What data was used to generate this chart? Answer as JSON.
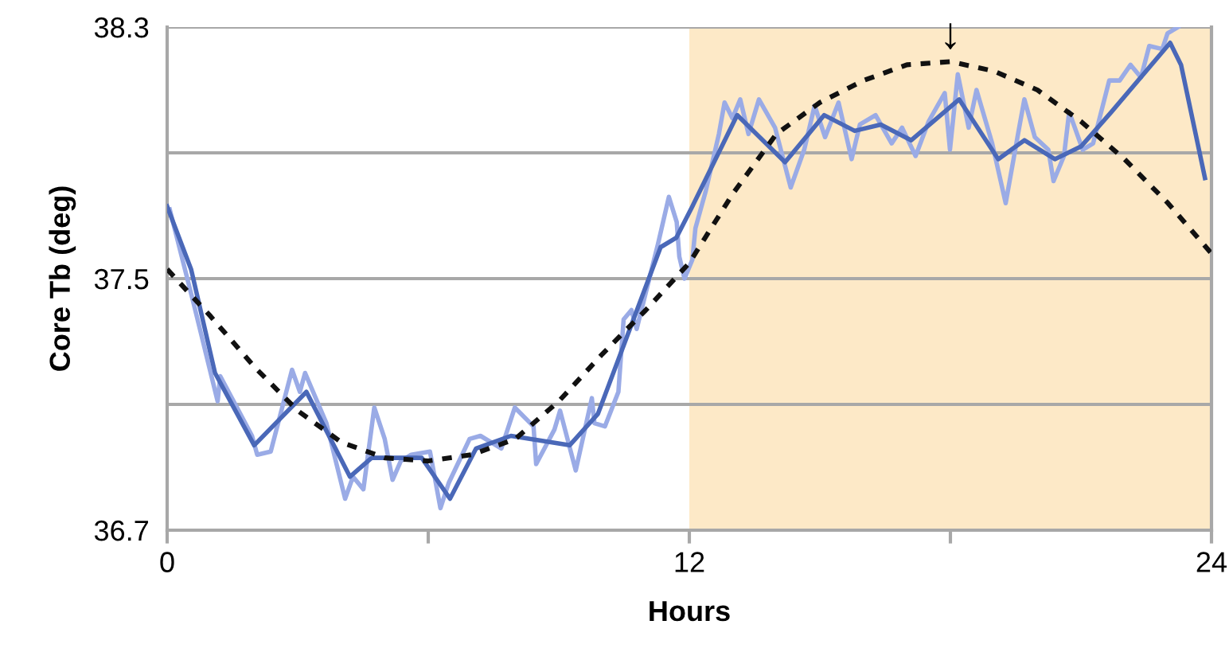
{
  "chart_data": {
    "type": "line",
    "xlabel": "Hours",
    "ylabel": "Core Tb (deg)",
    "xlim": [
      0,
      24
    ],
    "ylim": [
      36.7,
      38.3
    ],
    "xticks": [
      0,
      {
        "value": 6,
        "label": null
      },
      12,
      {
        "value": 18,
        "label": null
      },
      24
    ],
    "yticks": [
      36.7,
      {
        "value": 37.1,
        "label": null
      },
      37.5,
      {
        "value": 37.9,
        "label": null
      },
      38.3
    ],
    "grid": "y",
    "legend": false,
    "bands": [
      {
        "axis": "x",
        "from": 12,
        "to": 24,
        "label": null,
        "color": "#fde9c7"
      }
    ],
    "annotations": [
      {
        "text": "↓",
        "x": 18,
        "y": 38.19
      }
    ],
    "series": [
      {
        "color": "#9aabe6",
        "line_style": "solid",
        "x": [
          0.06,
          0.61,
          1.16,
          1.22,
          1.95,
          2.07,
          2.38,
          2.87,
          3.05,
          3.17,
          3.66,
          4.09,
          4.27,
          4.51,
          4.76,
          5.0,
          5.18,
          5.37,
          5.61,
          6.04,
          6.28,
          6.47,
          6.95,
          7.2,
          7.68,
          7.99,
          8.42,
          8.48,
          8.9,
          9.03,
          9.39,
          9.76,
          9.82,
          10.06,
          10.37,
          10.49,
          10.67,
          10.79,
          11.28,
          11.53,
          11.71,
          11.77,
          11.89,
          12.07,
          12.14,
          12.38,
          12.68,
          12.81,
          12.99,
          13.17,
          13.36,
          13.6,
          13.97,
          14.33,
          14.64,
          14.88,
          15.12,
          15.43,
          15.73,
          15.92,
          16.28,
          16.65,
          16.89,
          17.2,
          17.5,
          17.87,
          17.99,
          18.17,
          18.42,
          18.6,
          18.96,
          19.27,
          19.58,
          19.7,
          19.94,
          20.25,
          20.37,
          20.61,
          20.73,
          21.04,
          21.28,
          21.65,
          21.89,
          22.14,
          22.38,
          22.57,
          22.87,
          22.99,
          23.23
        ],
        "values": [
          37.72,
          37.42,
          37.11,
          37.19,
          37.0,
          36.94,
          36.95,
          37.21,
          37.14,
          37.2,
          37.04,
          36.8,
          36.87,
          36.83,
          37.09,
          36.99,
          36.86,
          36.92,
          36.94,
          36.95,
          36.77,
          36.85,
          36.99,
          37.0,
          36.96,
          37.09,
          37.03,
          36.91,
          37.02,
          37.08,
          36.89,
          37.12,
          37.04,
          37.03,
          37.14,
          37.37,
          37.4,
          37.34,
          37.61,
          37.76,
          37.68,
          37.57,
          37.5,
          37.56,
          37.66,
          37.78,
          37.96,
          38.06,
          38.01,
          38.07,
          37.96,
          38.07,
          37.98,
          37.79,
          37.91,
          38.05,
          37.95,
          38.06,
          37.88,
          37.99,
          38.02,
          37.93,
          37.98,
          37.89,
          38.0,
          38.09,
          37.91,
          38.15,
          37.98,
          38.1,
          37.93,
          37.74,
          37.98,
          38.07,
          37.95,
          37.91,
          37.81,
          37.89,
          38.03,
          37.91,
          37.93,
          38.13,
          38.13,
          38.18,
          38.14,
          38.24,
          38.23,
          38.28,
          38.3
        ]
      },
      {
        "color": "#4a68b8",
        "line_style": "solid",
        "x": [
          0.0,
          0.55,
          1.1,
          2.0,
          3.2,
          4.2,
          4.7,
          5.85,
          6.5,
          7.1,
          7.9,
          9.25,
          9.9,
          11.34,
          11.7,
          12.07,
          13.1,
          14.2,
          15.1,
          15.8,
          16.4,
          17.1,
          18.2,
          19.1,
          19.7,
          20.4,
          21.0,
          21.7,
          23.05,
          23.3,
          23.85
        ],
        "values": [
          37.73,
          37.53,
          37.2,
          36.97,
          37.14,
          36.87,
          36.93,
          36.93,
          36.8,
          36.96,
          37.0,
          36.97,
          37.07,
          37.6,
          37.63,
          37.73,
          38.02,
          37.87,
          38.02,
          37.97,
          37.99,
          37.94,
          38.07,
          37.88,
          37.94,
          37.88,
          37.92,
          38.03,
          38.25,
          38.18,
          37.82
        ]
      },
      {
        "color": "#111111",
        "line_style": "dotted",
        "x": [
          0,
          1,
          2,
          3,
          4,
          5,
          6,
          7,
          8,
          9,
          10,
          11,
          12,
          13,
          14,
          15,
          16,
          17,
          18,
          19,
          20,
          21,
          22,
          23,
          24
        ],
        "values": [
          37.53,
          37.38,
          37.22,
          37.08,
          36.98,
          36.93,
          36.92,
          36.94,
          36.99,
          37.11,
          37.26,
          37.4,
          37.55,
          37.77,
          37.96,
          38.06,
          38.13,
          38.18,
          38.19,
          38.16,
          38.1,
          38.0,
          37.88,
          37.74,
          37.58
        ]
      }
    ]
  }
}
